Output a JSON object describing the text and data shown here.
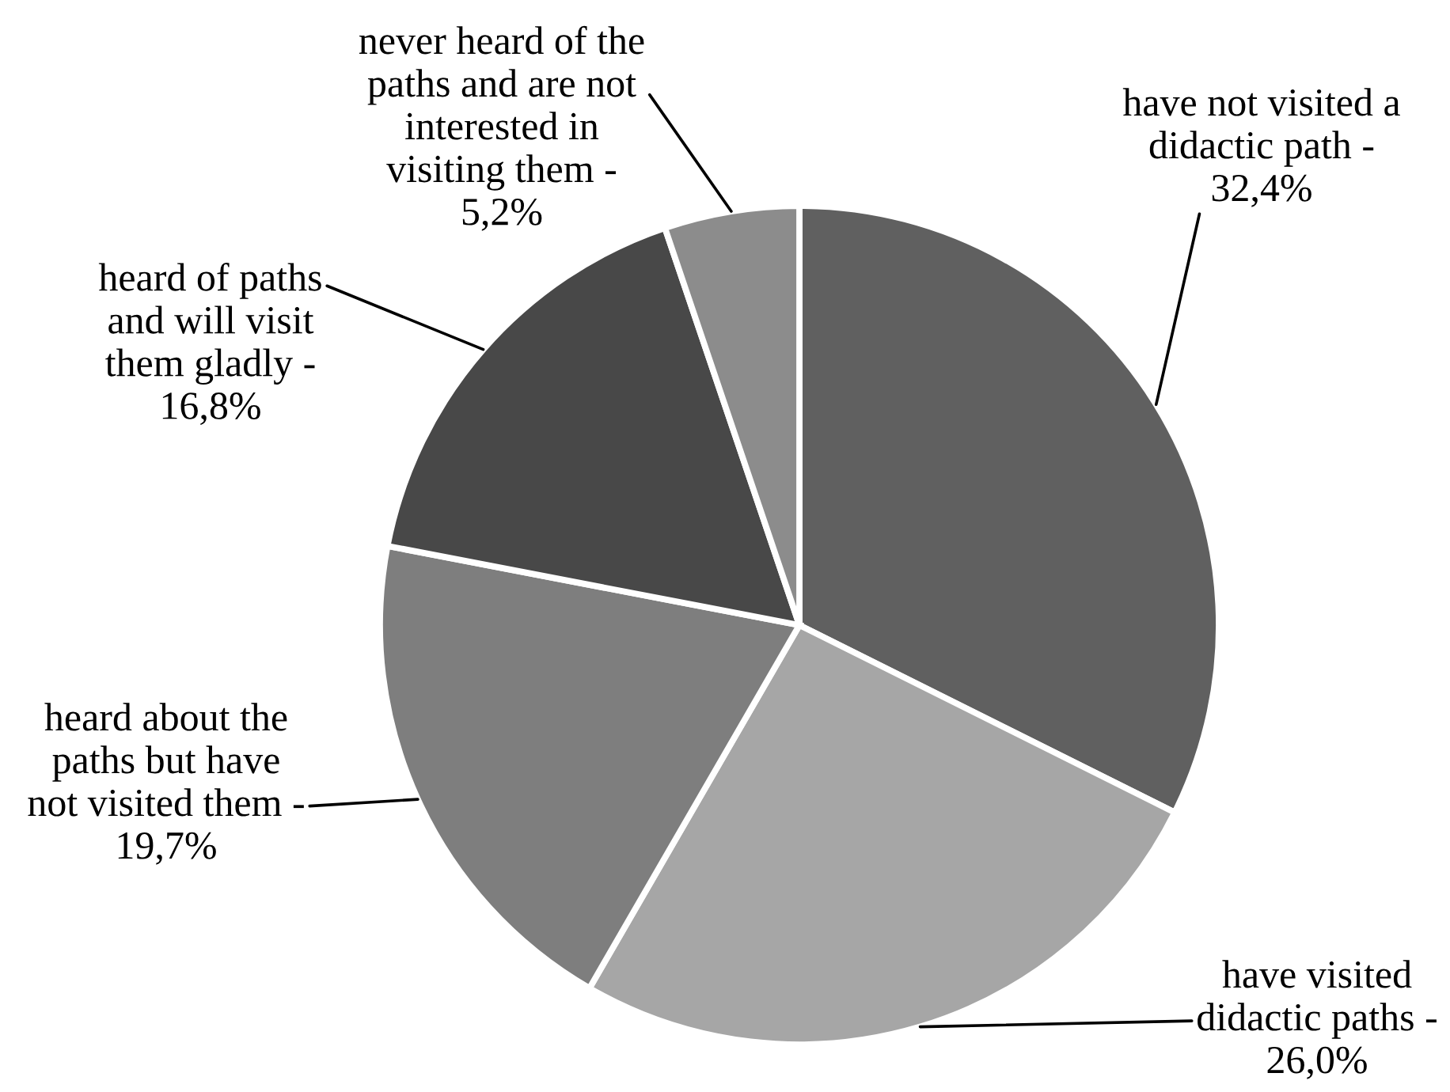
{
  "chart_data": {
    "type": "pie",
    "categories": [
      "have not visited a\ndidactic path -",
      "have visited\ndidactic paths -",
      "heard about the\npaths but have\nnot visited them -",
      "heard of paths\nand will visit\nthem gladly -",
      "never heard of the\npaths and are not\ninterested in\nvisiting them -"
    ],
    "values": [
      32.4,
      26.0,
      19.7,
      16.8,
      5.2
    ],
    "value_labels": [
      "32,4%",
      "26,0%",
      "19,7%",
      "16,8%",
      "5,2%"
    ],
    "colors": [
      "#606060",
      "#a6a6a6",
      "#7e7e7e",
      "#484848",
      "#8c8c8c"
    ]
  }
}
